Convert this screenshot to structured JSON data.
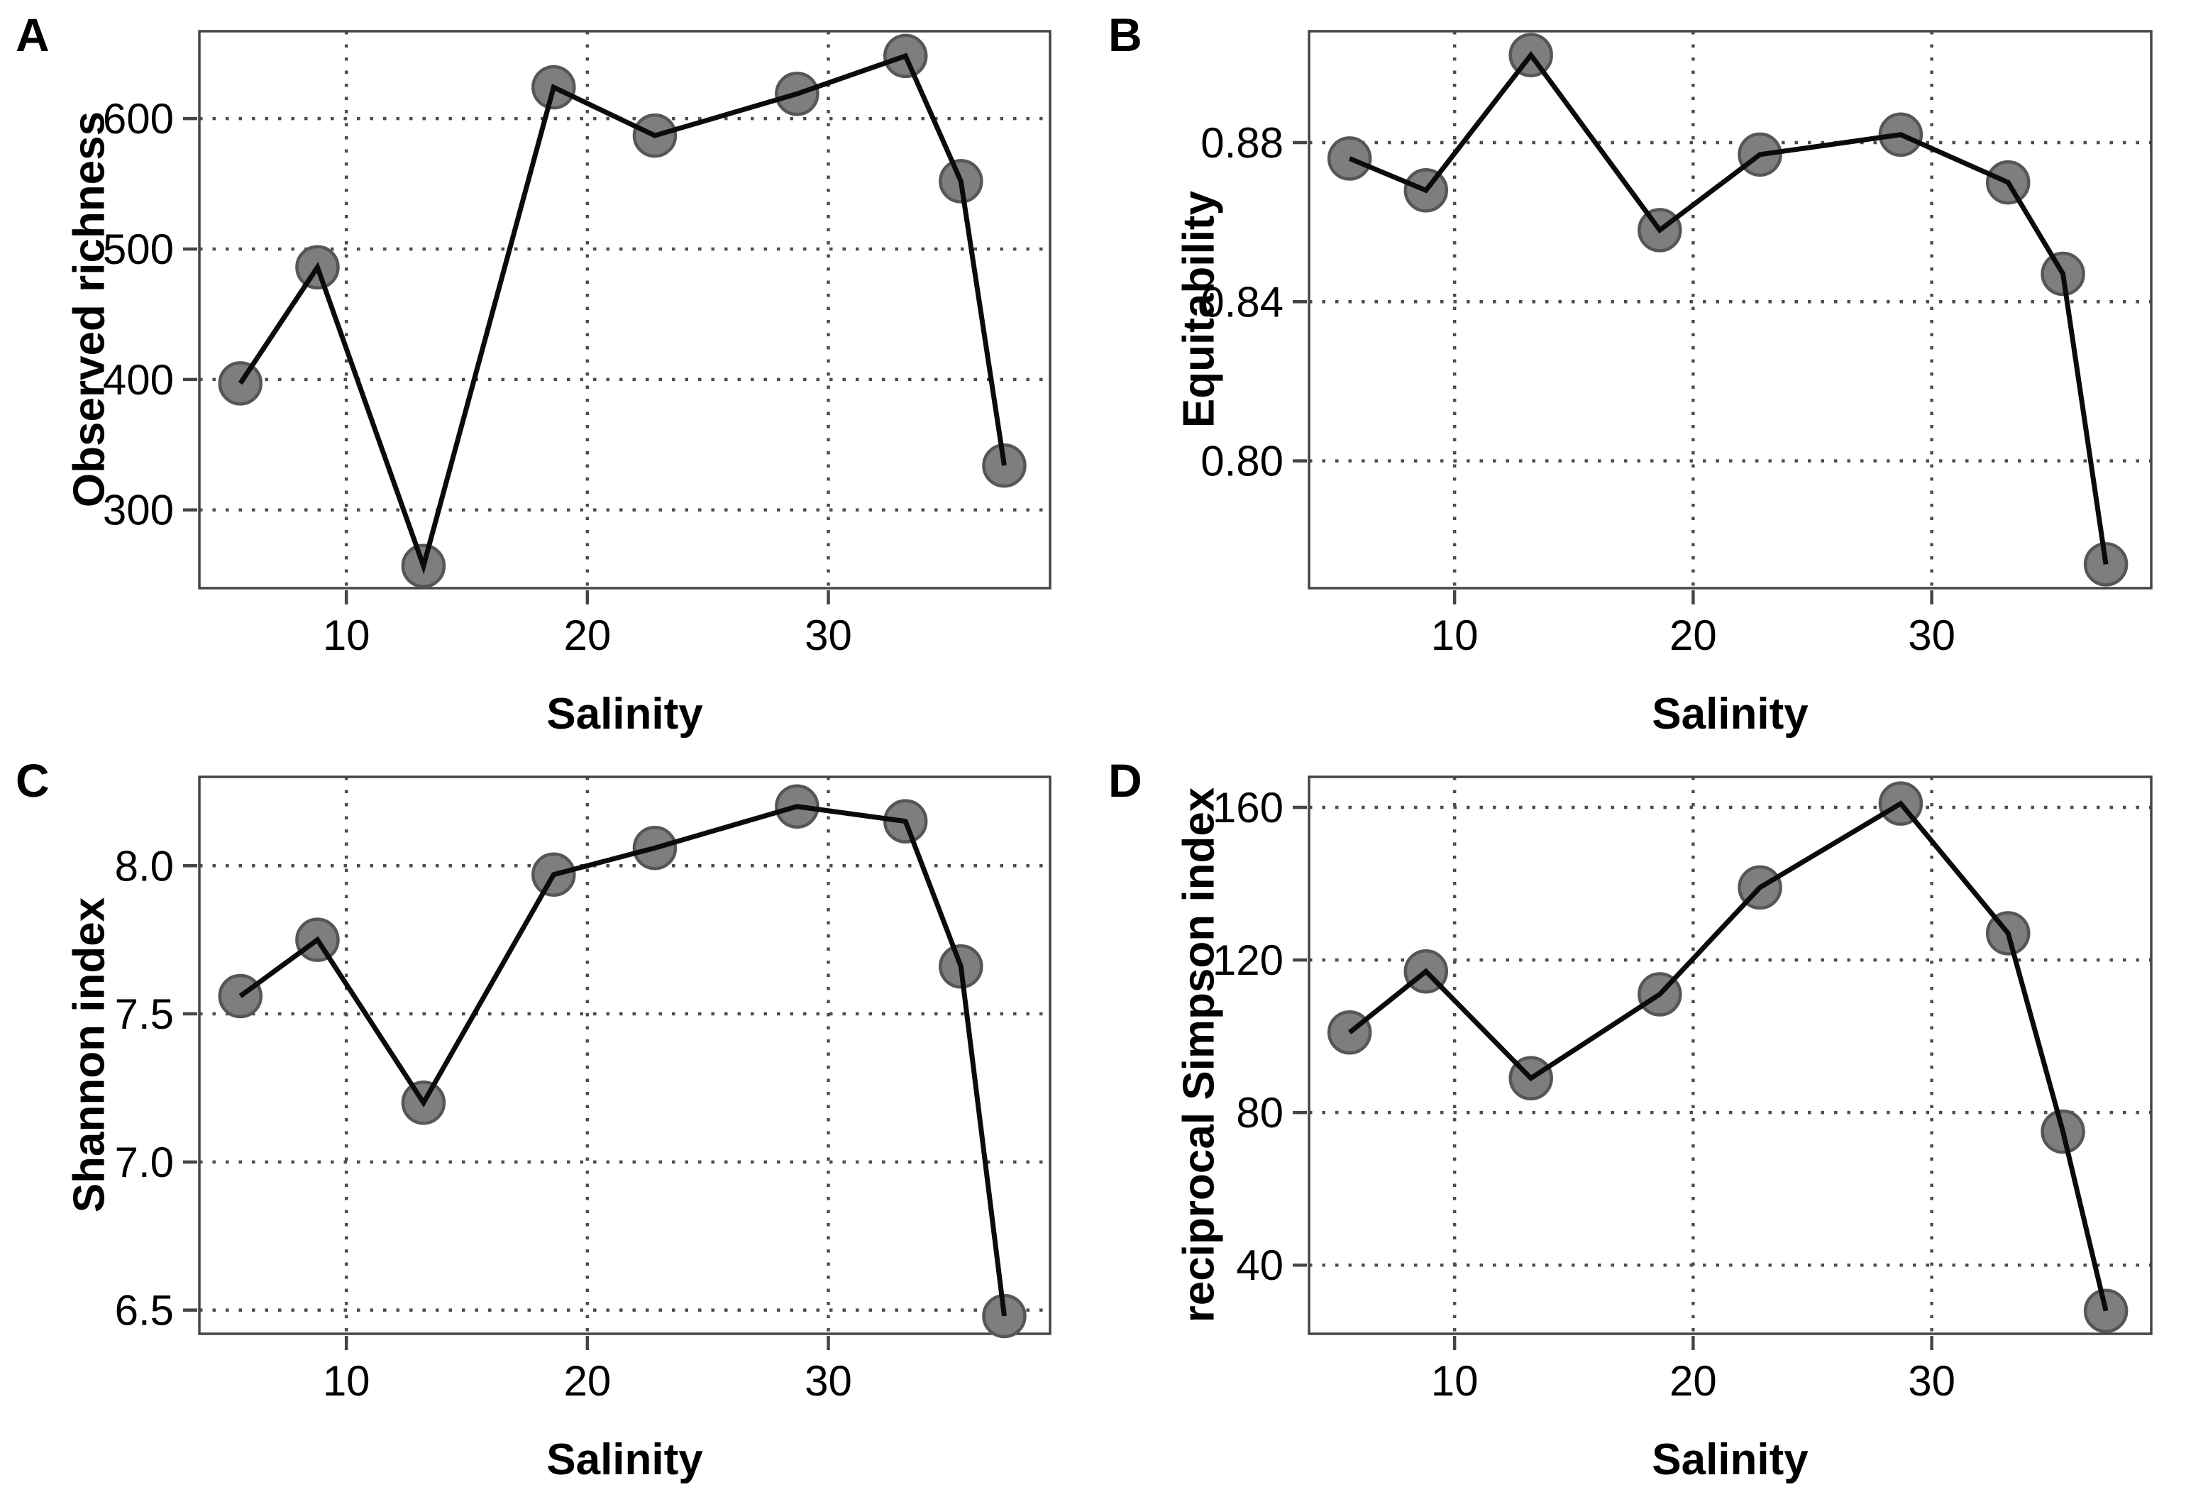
{
  "style": {
    "background": "#ffffff",
    "text_color": "#000000",
    "line_color": "#0b0b0b",
    "point_fill": "#7e7e7e",
    "point_stroke": "#565656",
    "grid_color": "#4d4d4d",
    "frame_color": "#454545"
  },
  "chart_data": [
    {
      "type": "line",
      "panel_label": "A",
      "title": "",
      "xlabel": "Salinity",
      "ylabel": "Observed richness",
      "x": [
        5.6,
        8.8,
        13.2,
        18.6,
        22.8,
        28.7,
        33.2,
        35.5,
        37.3
      ],
      "y": [
        397,
        486,
        257,
        624,
        587,
        619,
        648,
        552,
        334
      ],
      "xlim": [
        3.9,
        39.2
      ],
      "ylim": [
        240,
        667
      ],
      "xticks": [
        10,
        20,
        30
      ],
      "xtick_labels": [
        "10",
        "20",
        "30"
      ],
      "yticks": [
        300,
        400,
        500,
        600
      ],
      "ytick_labels": [
        "300",
        "400",
        "500",
        "600"
      ],
      "grid": "dotted-major",
      "legend": "none",
      "marker": "filled-gray-circle"
    },
    {
      "type": "line",
      "panel_label": "B",
      "title": "",
      "xlabel": "Salinity",
      "ylabel": "Equitability",
      "x": [
        5.6,
        8.8,
        13.2,
        18.6,
        22.8,
        28.7,
        33.2,
        35.5,
        37.3
      ],
      "y": [
        0.876,
        0.868,
        0.902,
        0.858,
        0.877,
        0.882,
        0.87,
        0.847,
        0.774
      ],
      "xlim": [
        3.9,
        39.2
      ],
      "ylim": [
        0.768,
        0.908
      ],
      "xticks": [
        10,
        20,
        30
      ],
      "xtick_labels": [
        "10",
        "20",
        "30"
      ],
      "yticks": [
        0.8,
        0.84,
        0.88
      ],
      "ytick_labels": [
        "0.80",
        "0.84",
        "0.88"
      ],
      "grid": "dotted-major",
      "legend": "none",
      "marker": "filled-gray-circle"
    },
    {
      "type": "line",
      "panel_label": "C",
      "title": "",
      "xlabel": "Salinity",
      "ylabel": "Shannon index",
      "x": [
        5.6,
        8.8,
        13.2,
        18.6,
        22.8,
        28.7,
        33.2,
        35.5,
        37.3
      ],
      "y": [
        7.56,
        7.75,
        7.2,
        7.97,
        8.06,
        8.2,
        8.15,
        7.66,
        6.48
      ],
      "xlim": [
        3.9,
        39.2
      ],
      "ylim": [
        6.42,
        8.3
      ],
      "xticks": [
        10,
        20,
        30
      ],
      "xtick_labels": [
        "10",
        "20",
        "30"
      ],
      "yticks": [
        6.5,
        7.0,
        7.5,
        8.0
      ],
      "ytick_labels": [
        "6.5",
        "7.0",
        "7.5",
        "8.0"
      ],
      "grid": "dotted-major",
      "legend": "none",
      "marker": "filled-gray-circle"
    },
    {
      "type": "line",
      "panel_label": "D",
      "title": "",
      "xlabel": "Salinity",
      "ylabel": "reciprocal Simpson index",
      "x": [
        5.6,
        8.8,
        13.2,
        18.6,
        22.8,
        28.7,
        33.2,
        35.5,
        37.3
      ],
      "y": [
        101,
        117,
        89,
        111,
        139,
        161,
        127,
        75,
        28
      ],
      "xlim": [
        3.9,
        39.2
      ],
      "ylim": [
        22,
        168
      ],
      "xticks": [
        10,
        20,
        30
      ],
      "xtick_labels": [
        "10",
        "20",
        "30"
      ],
      "yticks": [
        40,
        80,
        120,
        160
      ],
      "ytick_labels": [
        "40",
        "80",
        "120",
        "160"
      ],
      "grid": "dotted-major",
      "legend": "none",
      "marker": "filled-gray-circle"
    }
  ]
}
